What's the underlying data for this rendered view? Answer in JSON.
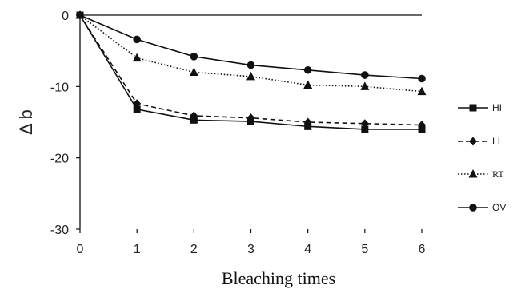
{
  "chart_data": {
    "type": "line",
    "xlabel": "Bleaching times",
    "ylabel": "Δ b",
    "x": [
      0,
      1,
      2,
      3,
      4,
      5,
      6
    ],
    "xlim": [
      0,
      6
    ],
    "ylim": [
      -30,
      0
    ],
    "xticks": [
      "0",
      "1",
      "2",
      "3",
      "4",
      "5",
      "6"
    ],
    "yticks": [
      "0",
      "-10",
      "-20",
      "-30"
    ],
    "grid": false,
    "legend_position": "right",
    "series": [
      {
        "name": "HI",
        "marker": "square",
        "line": "solid",
        "values": [
          0,
          -13.2,
          -14.7,
          -14.9,
          -15.6,
          -16.0,
          -16.0
        ]
      },
      {
        "name": "LI",
        "marker": "diamond",
        "line": "dashed",
        "values": [
          0,
          -12.4,
          -14.1,
          -14.4,
          -15.0,
          -15.2,
          -15.4
        ]
      },
      {
        "name": "RT",
        "marker": "triangle",
        "line": "dotted",
        "values": [
          0,
          -6.0,
          -8.0,
          -8.6,
          -9.8,
          -10.0,
          -10.7
        ]
      },
      {
        "name": "OV",
        "marker": "circle",
        "line": "solid",
        "values": [
          0,
          -3.4,
          -5.8,
          -7.0,
          -7.7,
          -8.4,
          -8.9
        ]
      }
    ],
    "colors": {
      "line": "#111111",
      "axis": "#111111"
    }
  }
}
